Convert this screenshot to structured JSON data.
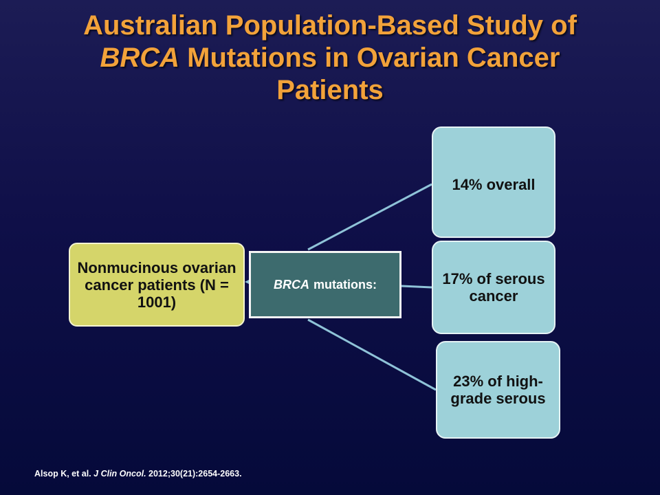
{
  "slide": {
    "title": {
      "line1": "Australian Population-Based Study of",
      "line2_italic": "BRCA",
      "line2_rest": " Mutations in Ovarian Cancer",
      "line3": "Patients"
    },
    "diagram": {
      "source_node": "Nonmucinous ovarian cancer patients (N = 1001)",
      "hub_node": {
        "italic": "BRCA",
        "text": "mutations:"
      },
      "results": [
        {
          "label": "14% overall"
        },
        {
          "label": "17% of serous cancer"
        },
        {
          "label": "23% of high-grade serous"
        }
      ]
    },
    "citation": {
      "authors": "Alsop K, et al.",
      "journal": "J Clin Oncol.",
      "details": "2012;30(21):2654-2663."
    },
    "colors": {
      "title": "#f2a23a",
      "source_fill": "#d5d56a",
      "hub_fill": "#3d6b6e",
      "result_fill": "#9dd1d9",
      "connector": "#8fc3d8",
      "background": "#0f0f48"
    }
  }
}
